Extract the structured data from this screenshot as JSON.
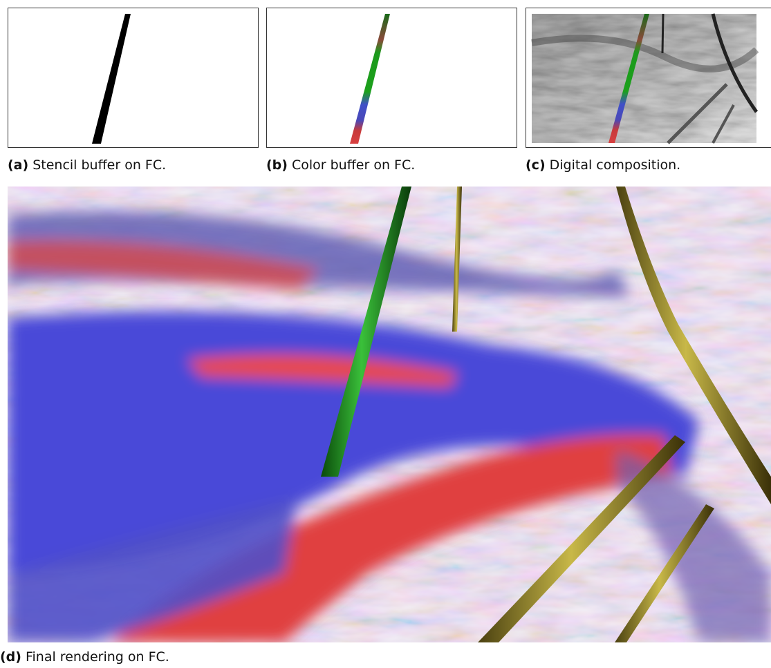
{
  "figures": [
    {
      "label": "(a)",
      "caption": "Stencil buffer on FC."
    },
    {
      "label": "(b)",
      "caption": "Color buffer on FC."
    },
    {
      "label": "(c)",
      "caption": "Digital composition."
    },
    {
      "label": "(d)",
      "caption": "Final rendering on FC."
    }
  ]
}
